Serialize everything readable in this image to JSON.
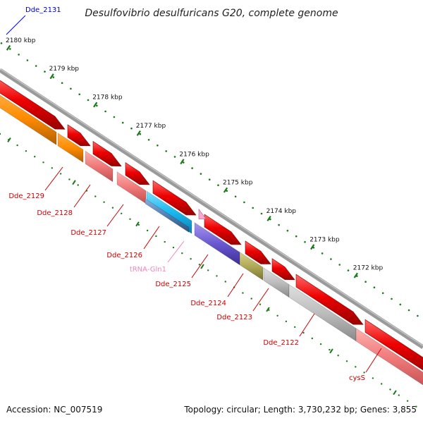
{
  "title": "Desulfovibrio desulfuricans G20, complete genome",
  "footer": {
    "accession": "Accession: NC_007519",
    "topology": "Topology: circular; Length: 3,730,232 bp; Genes: 3,855"
  },
  "scale": {
    "ticks": [
      {
        "label": "2180 kbp",
        "kbp": 2180
      },
      {
        "label": "2179 kbp",
        "kbp": 2179
      },
      {
        "label": "2178 kbp",
        "kbp": 2178
      },
      {
        "label": "2177 kbp",
        "kbp": 2177
      },
      {
        "label": "2176 kbp",
        "kbp": 2176
      },
      {
        "label": "2175 kbp",
        "kbp": 2175
      },
      {
        "label": "2174 kbp",
        "kbp": 2174
      },
      {
        "label": "2173 kbp",
        "kbp": 2173
      },
      {
        "label": "2172 kbp",
        "kbp": 2172
      }
    ]
  },
  "colors": {
    "backbone": "#888888",
    "cds_red": "#ee0000",
    "tick_green": "#1a7a1a",
    "label_red": "#cc0000",
    "label_blue": "#0000cc",
    "label_pink": "#ee88bb"
  },
  "genes": [
    {
      "id": "dde2131",
      "label": "Dde_2131",
      "color": "#0000cc"
    },
    {
      "id": "dde2129",
      "label": "Dde_2129",
      "color": "#cc0000"
    },
    {
      "id": "dde2128",
      "label": "Dde_2128",
      "color": "#cc0000"
    },
    {
      "id": "dde2127",
      "label": "Dde_2127",
      "color": "#cc0000"
    },
    {
      "id": "dde2126",
      "label": "Dde_2126",
      "color": "#cc0000"
    },
    {
      "id": "trnagln1",
      "label": "tRNA-Gln1",
      "color": "#ee88bb"
    },
    {
      "id": "dde2125",
      "label": "Dde_2125",
      "color": "#cc0000"
    },
    {
      "id": "dde2124",
      "label": "Dde_2124",
      "color": "#cc0000"
    },
    {
      "id": "dde2123",
      "label": "Dde_2123",
      "color": "#cc0000"
    },
    {
      "id": "dde2122",
      "label": "Dde_2122",
      "color": "#cc0000"
    },
    {
      "id": "cyss",
      "label": "cysS",
      "color": "#cc0000"
    }
  ]
}
